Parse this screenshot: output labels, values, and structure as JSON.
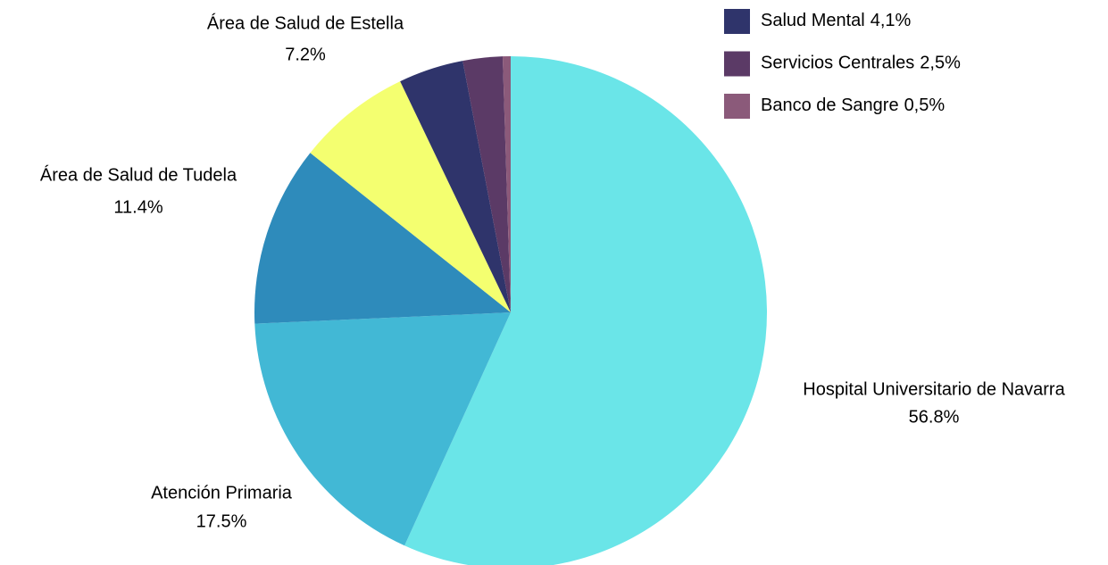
{
  "chart_data": {
    "type": "pie",
    "categories": [
      "Hospital Universitario de Navarra",
      "Atención Primaria",
      "Área de Salud de Tudela",
      "Área de Salud de Estella",
      "Salud Mental",
      "Servicios Centrales",
      "Banco de Sangre"
    ],
    "values": [
      56.8,
      17.5,
      11.4,
      7.2,
      4.1,
      2.5,
      0.5
    ],
    "value_labels": [
      "56.8%",
      "17.5%",
      "11.4%",
      "7.2%",
      "4,1%",
      "2,5%",
      "0,5%"
    ],
    "colors": [
      "#6ae5e8",
      "#42b8d5",
      "#2e8bbb",
      "#f4ff70",
      "#2f346b",
      "#5b3a66",
      "#8b5a7a"
    ],
    "legend": "top-right"
  }
}
